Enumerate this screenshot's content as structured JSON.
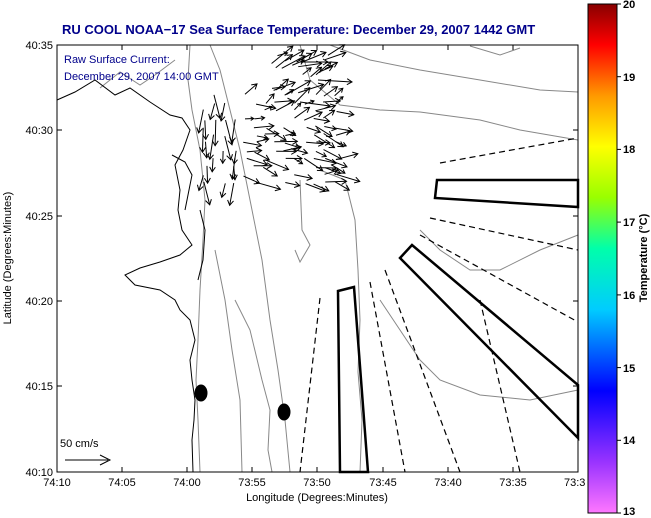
{
  "title": "RU COOL  NOAA−17  Sea Surface Temperature:  December 29, 2007 1442 GMT",
  "current_label": {
    "line1": "Raw Surface Current:",
    "line2": "December 29, 2007 14:00 GMT"
  },
  "x_axis": {
    "label": "Longitude (Degrees:Minutes)",
    "ticks": [
      "74:10",
      "74:05",
      "74:00",
      "73:55",
      "73:50",
      "73:45",
      "73:40",
      "73:35",
      "73:3"
    ]
  },
  "y_axis": {
    "label": "Latitude (Degrees:Minutes)",
    "ticks": [
      "40:35",
      "40:30",
      "40:25",
      "40:20",
      "40:15",
      "40:10"
    ]
  },
  "scale_label": "50 cm/s",
  "colorbar": {
    "label": "Temperature (°C)",
    "ticks": [
      "20",
      "19",
      "18",
      "17",
      "16",
      "15",
      "14",
      "13"
    ],
    "min": 13,
    "max": 20,
    "gradient": [
      "#ff77ff",
      "#9933ff",
      "#0000ff",
      "#00ccff",
      "#00ffaa",
      "#99ff00",
      "#ffff00",
      "#ff9900",
      "#ff0000",
      "#880000"
    ]
  },
  "map": {
    "land_color": "#ffffff",
    "sea_color": "#ffffff",
    "markers": 2
  }
}
